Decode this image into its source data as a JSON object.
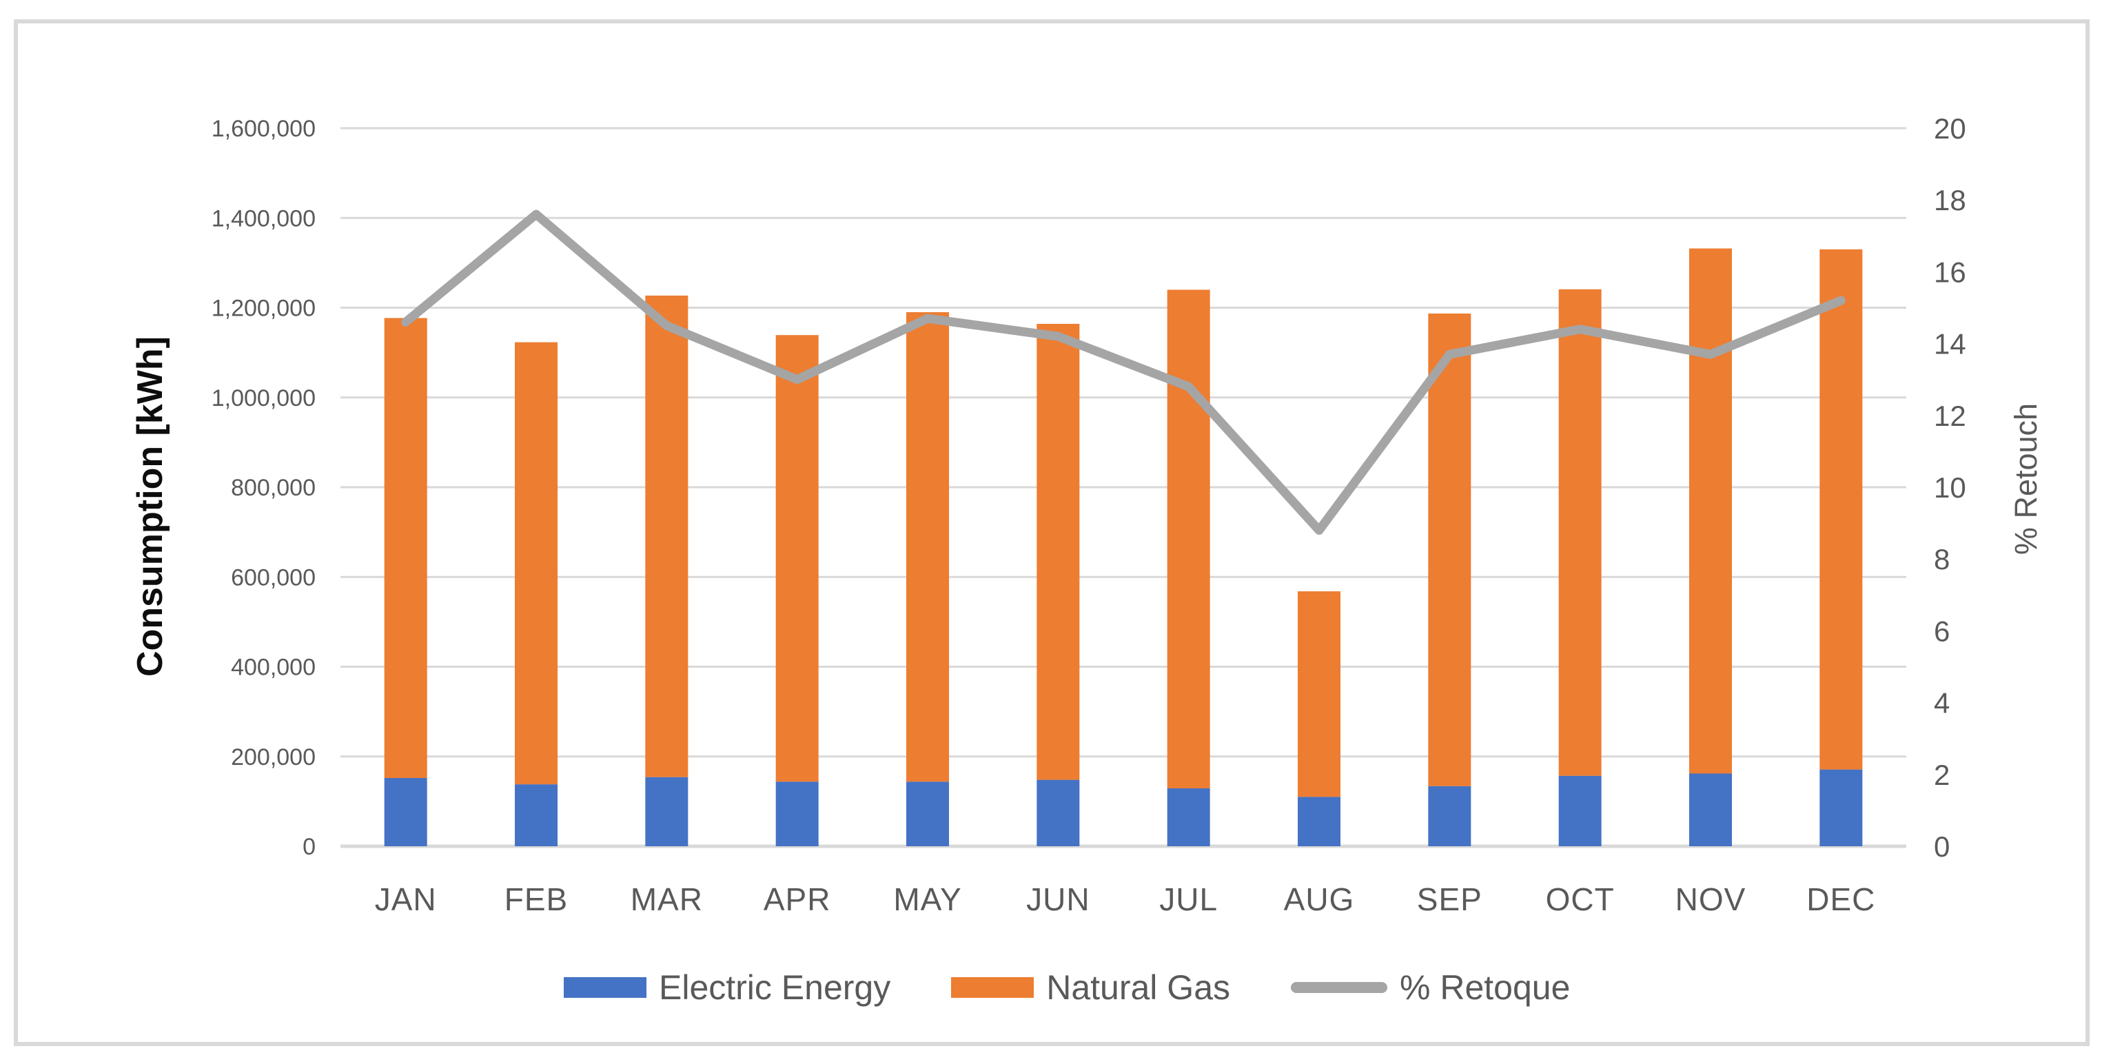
{
  "chart_data": {
    "type": "combo_stacked_bar_line",
    "categories": [
      "JAN",
      "FEB",
      "MAR",
      "APR",
      "MAY",
      "JUN",
      "JUL",
      "AUG",
      "SEP",
      "OCT",
      "NOV",
      "DEC"
    ],
    "series": [
      {
        "name": "Electric Energy",
        "chart": "bar",
        "stack": "consumption",
        "axis": "left",
        "color": "#4472C4",
        "values": [
          152000,
          138000,
          154000,
          144000,
          144000,
          148000,
          129000,
          110000,
          134000,
          157000,
          162000,
          171000
        ]
      },
      {
        "name": "Natural Gas",
        "chart": "bar",
        "stack": "consumption",
        "axis": "left",
        "color": "#ED7D31",
        "values": [
          1025000,
          985000,
          1073000,
          995000,
          1046000,
          1016000,
          1111000,
          458000,
          1053000,
          1084000,
          1170000,
          1159000
        ]
      },
      {
        "name": "% Retoque",
        "chart": "line",
        "axis": "right",
        "color": "#A5A5A5",
        "values": [
          14.6,
          17.6,
          14.5,
          13.0,
          14.7,
          14.2,
          12.8,
          8.8,
          13.7,
          14.4,
          13.7,
          15.2
        ]
      }
    ],
    "stacked_totals": [
      1177000,
      1123000,
      1227000,
      1139000,
      1190000,
      1164000,
      1240000,
      568000,
      1187000,
      1241000,
      1332000,
      1330000
    ],
    "left_axis": {
      "title": "Consumption [kWh]",
      "min": 0,
      "max": 1600000,
      "step": 200000,
      "tick_labels": [
        "0",
        "200,000",
        "400,000",
        "600,000",
        "800,000",
        "1,000,000",
        "1,200,000",
        "1,400,000",
        "1,600,000"
      ]
    },
    "right_axis": {
      "title": "% Retouch",
      "min": 0,
      "max": 20,
      "step": 2,
      "tick_labels": [
        "0",
        "2",
        "4",
        "6",
        "8",
        "10",
        "12",
        "14",
        "16",
        "18",
        "20"
      ]
    },
    "grid": true,
    "legend_position": "bottom",
    "colors": {
      "gridline": "#D9D9D9",
      "axis_line": "#D9D9D9",
      "tick_text": "#595959",
      "border": "#D9D9D9"
    }
  }
}
